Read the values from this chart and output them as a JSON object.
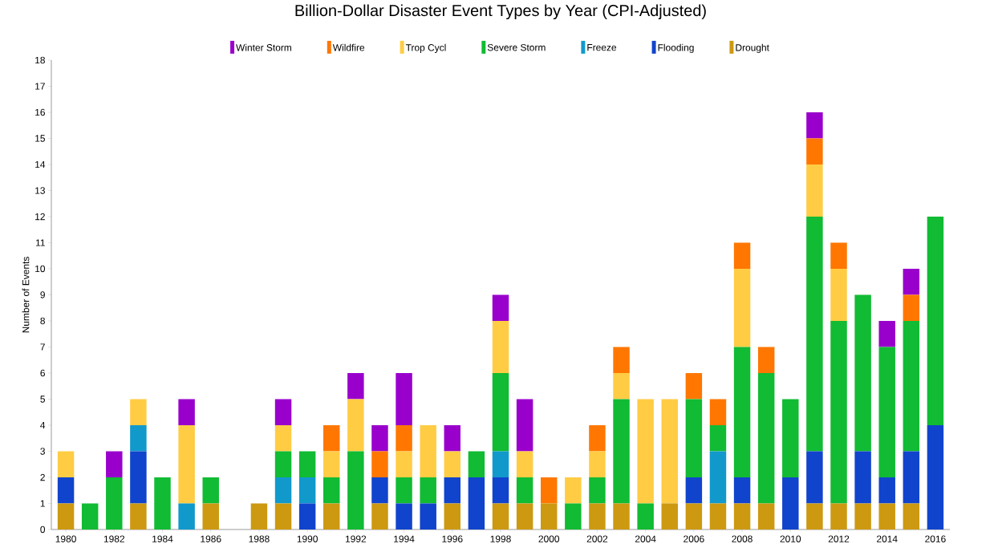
{
  "chart_data": {
    "type": "bar",
    "title": "Billion-Dollar Disaster Event Types by Year (CPI-Adjusted)",
    "ylabel": "Number of Events",
    "stacked": true,
    "legend": "top",
    "grid": false,
    "categories": [
      "1980",
      null,
      "1982",
      null,
      "1984",
      null,
      "1986",
      null,
      "1988",
      null,
      "1990",
      null,
      "1992",
      null,
      "1994",
      null,
      "1996",
      null,
      "1998",
      null,
      "2000",
      null,
      "2002",
      null,
      "2004",
      null,
      "2006",
      null,
      "2008",
      null,
      "2010",
      null,
      "2012",
      null,
      "2014",
      null,
      "2016"
    ],
    "ylim": [
      0,
      18
    ],
    "yticks": [
      0,
      1,
      2,
      3,
      4,
      5,
      6,
      7,
      8,
      9,
      10,
      11,
      12,
      13,
      14,
      15,
      16,
      17,
      18
    ],
    "series": [
      {
        "name": "Drought",
        "color": "#cc9911",
        "values": [
          1,
          0,
          0,
          1,
          0,
          0,
          1,
          0,
          1,
          1,
          0,
          1,
          0,
          1,
          0,
          0,
          1,
          0,
          1,
          1,
          1,
          0,
          1,
          1,
          0,
          1,
          1,
          1,
          1,
          1,
          0,
          1,
          1,
          1,
          1,
          1,
          0
        ]
      },
      {
        "name": "Flooding",
        "color": "#1144cc",
        "values": [
          1,
          0,
          0,
          2,
          0,
          0,
          0,
          0,
          0,
          0,
          1,
          0,
          0,
          1,
          1,
          1,
          1,
          2,
          1,
          0,
          0,
          0,
          0,
          0,
          0,
          0,
          1,
          0,
          1,
          0,
          2,
          2,
          0,
          2,
          1,
          2,
          4
        ]
      },
      {
        "name": "Freeze",
        "color": "#1199cc",
        "values": [
          0,
          0,
          0,
          1,
          0,
          1,
          0,
          0,
          0,
          1,
          1,
          0,
          0,
          0,
          0,
          0,
          0,
          0,
          1,
          0,
          0,
          0,
          0,
          0,
          0,
          0,
          0,
          2,
          0,
          0,
          0,
          0,
          0,
          0,
          0,
          0,
          0
        ]
      },
      {
        "name": "Severe Storm",
        "color": "#11bb33",
        "values": [
          0,
          1,
          2,
          0,
          2,
          0,
          1,
          0,
          0,
          1,
          1,
          1,
          3,
          0,
          1,
          1,
          0,
          1,
          3,
          1,
          0,
          1,
          1,
          4,
          1,
          0,
          3,
          1,
          5,
          5,
          3,
          9,
          7,
          6,
          5,
          5,
          8
        ]
      },
      {
        "name": "Trop Cycl",
        "color": "#ffcc44",
        "values": [
          1,
          0,
          0,
          1,
          0,
          3,
          0,
          0,
          0,
          1,
          0,
          1,
          2,
          0,
          1,
          2,
          1,
          0,
          2,
          1,
          0,
          1,
          1,
          1,
          4,
          4,
          0,
          0,
          3,
          0,
          0,
          2,
          2,
          0,
          0,
          0,
          0
        ]
      },
      {
        "name": "Wildfire",
        "color": "#ff7700",
        "values": [
          0,
          0,
          0,
          0,
          0,
          0,
          0,
          0,
          0,
          0,
          0,
          1,
          0,
          1,
          1,
          0,
          0,
          0,
          0,
          0,
          1,
          0,
          1,
          1,
          0,
          0,
          1,
          1,
          1,
          1,
          0,
          1,
          1,
          0,
          0,
          1,
          0
        ]
      },
      {
        "name": "Winter Storm",
        "color": "#9900cc",
        "values": [
          0,
          0,
          1,
          0,
          0,
          1,
          0,
          0,
          0,
          1,
          0,
          0,
          1,
          1,
          2,
          0,
          1,
          0,
          1,
          2,
          0,
          0,
          0,
          0,
          0,
          0,
          0,
          0,
          0,
          0,
          0,
          1,
          0,
          0,
          1,
          1,
          0
        ]
      }
    ]
  }
}
